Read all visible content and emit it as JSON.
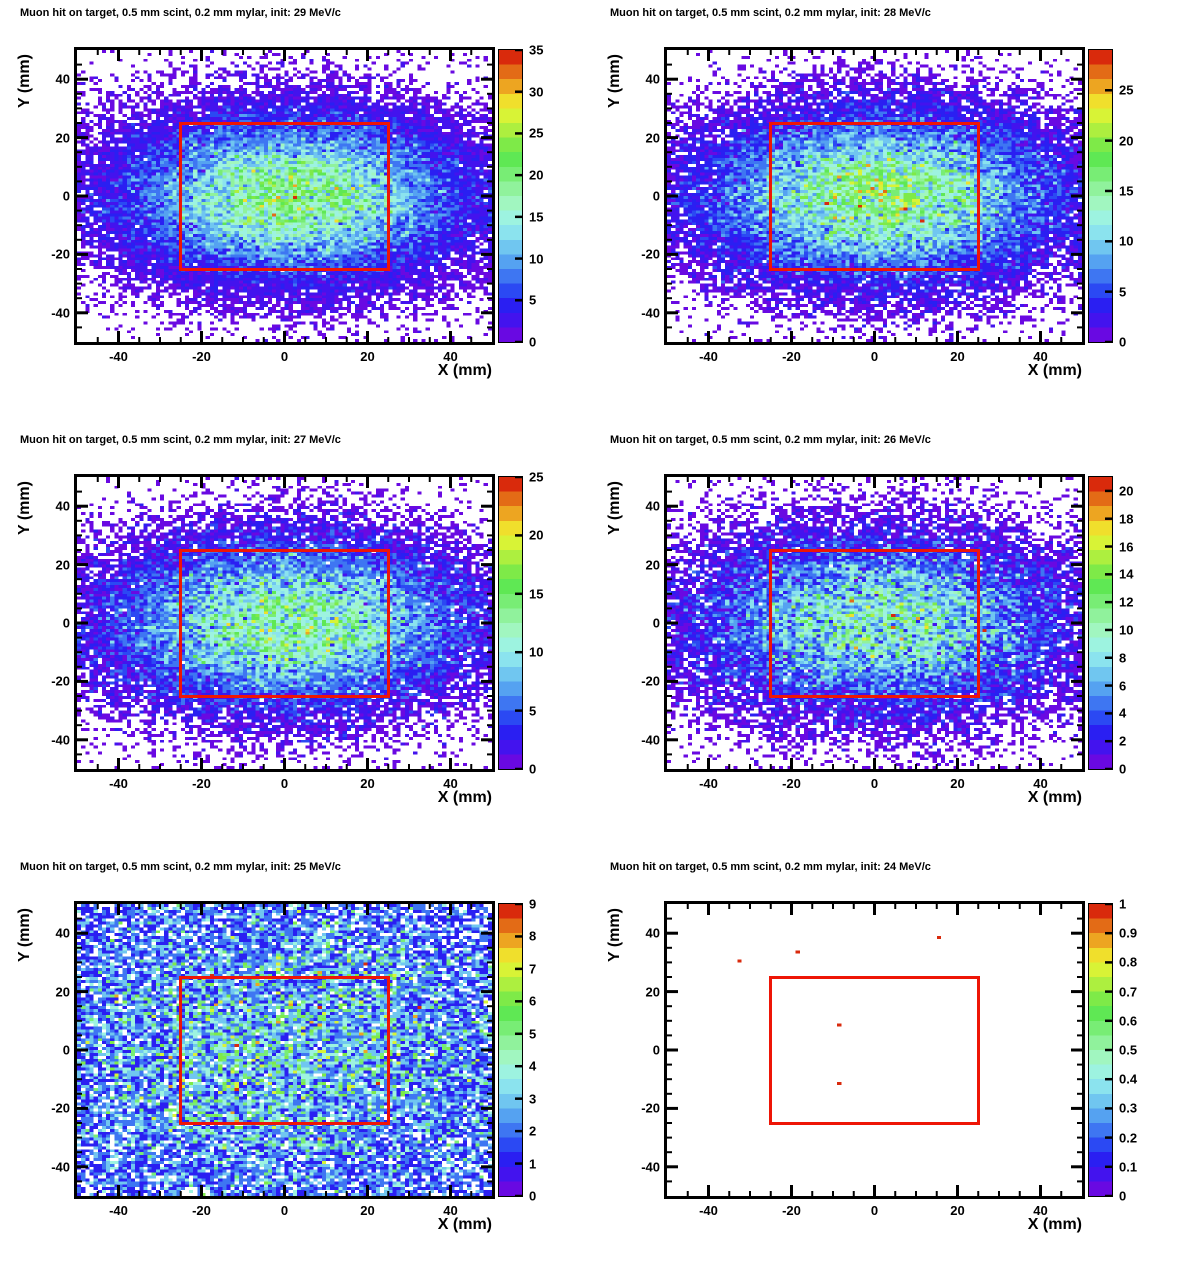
{
  "figure": {
    "background": "#ffffff",
    "text_color": "#000000"
  },
  "chart_data": {
    "type": "heatmap",
    "layout": {
      "rows": 3,
      "cols": 2,
      "panel_order": "row-major"
    },
    "axes": {
      "xlabel": "X (mm)",
      "ylabel": "Y (mm)",
      "xlim": [
        -50,
        50
      ],
      "ylim": [
        -50,
        50
      ],
      "x_major_ticks": [
        -40,
        -20,
        0,
        20,
        40
      ],
      "y_major_ticks": [
        -40,
        -20,
        0,
        20,
        40
      ],
      "minor_tick_step": 5,
      "major_tick_step": 20,
      "bins": [
        100,
        100
      ],
      "grid": false
    },
    "overlay_rect": {
      "x": [
        -25,
        25
      ],
      "y": [
        -25,
        25
      ],
      "color": "#ee1506",
      "line_width": 3
    },
    "palette": [
      "#6909e2",
      "#4313ee",
      "#2a1ff2",
      "#2b49f3",
      "#3e76f2",
      "#55a2f1",
      "#70c6f0",
      "#8be3ee",
      "#9df3e0",
      "#a1f6c0",
      "#90f29c",
      "#78ed75",
      "#5fe854",
      "#7eea48",
      "#adef3f",
      "#d8f336",
      "#f0df2c",
      "#eda521",
      "#e36b16",
      "#d92a0c"
    ],
    "zero_bin_color": "#ffffff",
    "panels": [
      {
        "title": "Muon hit on target, 0.5 mm scint, 0.2 mm mylar, init: 29 MeV/c",
        "momentum_mevc": 29,
        "colorbar": {
          "min": 0,
          "scale_max": 35,
          "ticks": [
            0,
            5,
            10,
            15,
            20,
            25,
            30,
            35
          ],
          "tick_labels": [
            "0",
            "5",
            "10",
            "15",
            "20",
            "25",
            "30",
            "35"
          ]
        },
        "distribution_estimate": {
          "model": "gaussian2d_poisson",
          "amplitude": 20,
          "sigma_x": 24,
          "sigma_y": 16,
          "center": [
            2,
            0
          ],
          "seed": 29
        }
      },
      {
        "title": "Muon hit on target, 0.5 mm scint, 0.2 mm mylar, init: 28 MeV/c",
        "momentum_mevc": 28,
        "colorbar": {
          "min": 0,
          "scale_max": 29,
          "ticks": [
            0,
            5,
            10,
            15,
            20,
            25
          ],
          "tick_labels": [
            "0",
            "5",
            "10",
            "15",
            "20",
            "25"
          ]
        },
        "distribution_estimate": {
          "model": "gaussian2d_poisson",
          "amplitude": 17.5,
          "sigma_x": 25,
          "sigma_y": 16.5,
          "center": [
            2,
            0
          ],
          "seed": 28
        }
      },
      {
        "title": "Muon hit on target, 0.5 mm scint, 0.2 mm mylar, init: 27 MeV/c",
        "momentum_mevc": 27,
        "colorbar": {
          "min": 0,
          "scale_max": 25,
          "ticks": [
            0,
            5,
            10,
            15,
            20,
            25
          ],
          "tick_labels": [
            "0",
            "5",
            "10",
            "15",
            "20",
            "25"
          ]
        },
        "distribution_estimate": {
          "model": "gaussian2d_poisson",
          "amplitude": 13,
          "sigma_x": 26,
          "sigma_y": 17,
          "center": [
            1,
            0
          ],
          "seed": 27
        }
      },
      {
        "title": "Muon hit on target, 0.5 mm scint, 0.2 mm mylar, init: 26 MeV/c",
        "momentum_mevc": 26,
        "colorbar": {
          "min": 0,
          "scale_max": 21,
          "ticks": [
            0,
            2,
            4,
            6,
            8,
            10,
            12,
            14,
            16,
            18,
            20
          ],
          "tick_labels": [
            "0",
            "2",
            "4",
            "6",
            "8",
            "10",
            "12",
            "14",
            "16",
            "18",
            "20"
          ]
        },
        "distribution_estimate": {
          "model": "gaussian2d_poisson",
          "amplitude": 10,
          "sigma_x": 27,
          "sigma_y": 18,
          "center": [
            1,
            0
          ],
          "seed": 26
        }
      },
      {
        "title": "Muon hit on target, 0.5 mm scint, 0.2 mm mylar, init: 25 MeV/c",
        "momentum_mevc": 25,
        "colorbar": {
          "min": 0,
          "scale_max": 9,
          "ticks": [
            0,
            1,
            2,
            3,
            4,
            5,
            6,
            7,
            8,
            9
          ],
          "tick_labels": [
            "0",
            "1",
            "2",
            "3",
            "4",
            "5",
            "6",
            "7",
            "8",
            "9"
          ]
        },
        "distribution_estimate": {
          "model": "gaussian2d_poisson",
          "amplitude": 3.2,
          "sigma_x": 50,
          "sigma_y": 42,
          "center": [
            0,
            0
          ],
          "seed": 25
        }
      },
      {
        "title": "Muon hit on target, 0.5 mm scint, 0.2 mm mylar, init: 24 MeV/c",
        "momentum_mevc": 24,
        "colorbar": {
          "min": 0,
          "scale_max": 1,
          "ticks": [
            0,
            0.1,
            0.2,
            0.3,
            0.4,
            0.5,
            0.6,
            0.7,
            0.8,
            0.9,
            1
          ],
          "tick_labels": [
            "0",
            "0.1",
            "0.2",
            "0.3",
            "0.4",
            "0.5",
            "0.6",
            "0.7",
            "0.8",
            "0.9",
            "1"
          ]
        },
        "distribution_estimate": {
          "model": "points_only",
          "amplitude": 0,
          "sigma_x": 1,
          "sigma_y": 1,
          "center": [
            0,
            0
          ],
          "seed": 24
        },
        "points": [
          {
            "x": -33,
            "y": 31,
            "value": 1
          },
          {
            "x": -18.5,
            "y": 34,
            "value": 1
          },
          {
            "x": 15,
            "y": 38.5,
            "value": 1
          },
          {
            "x": -9,
            "y": 9,
            "value": 1
          },
          {
            "x": -9,
            "y": -11,
            "value": 1
          }
        ]
      }
    ]
  }
}
